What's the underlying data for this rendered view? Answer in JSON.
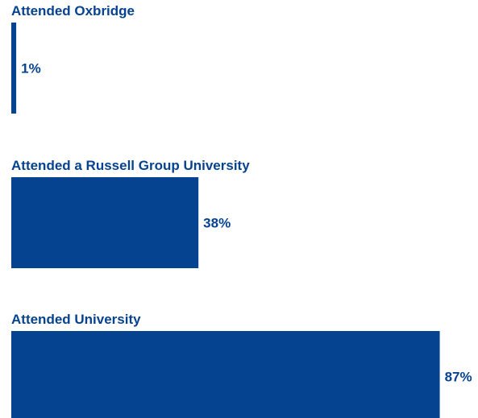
{
  "chart_data": {
    "type": "bar",
    "orientation": "horizontal",
    "categories": [
      "Attended Oxbridge",
      "Attended a Russell Group University",
      "Attended University"
    ],
    "values": [
      1,
      38,
      87
    ],
    "value_labels": [
      "1%",
      "38%",
      "87%"
    ],
    "unit": "%",
    "xlim": [
      0,
      100
    ],
    "grid": false,
    "legend": "none",
    "title": "",
    "xlabel": "",
    "ylabel": ""
  },
  "colors": {
    "bar": "#05428f",
    "text": "#05428f",
    "background": "#ffffff"
  }
}
